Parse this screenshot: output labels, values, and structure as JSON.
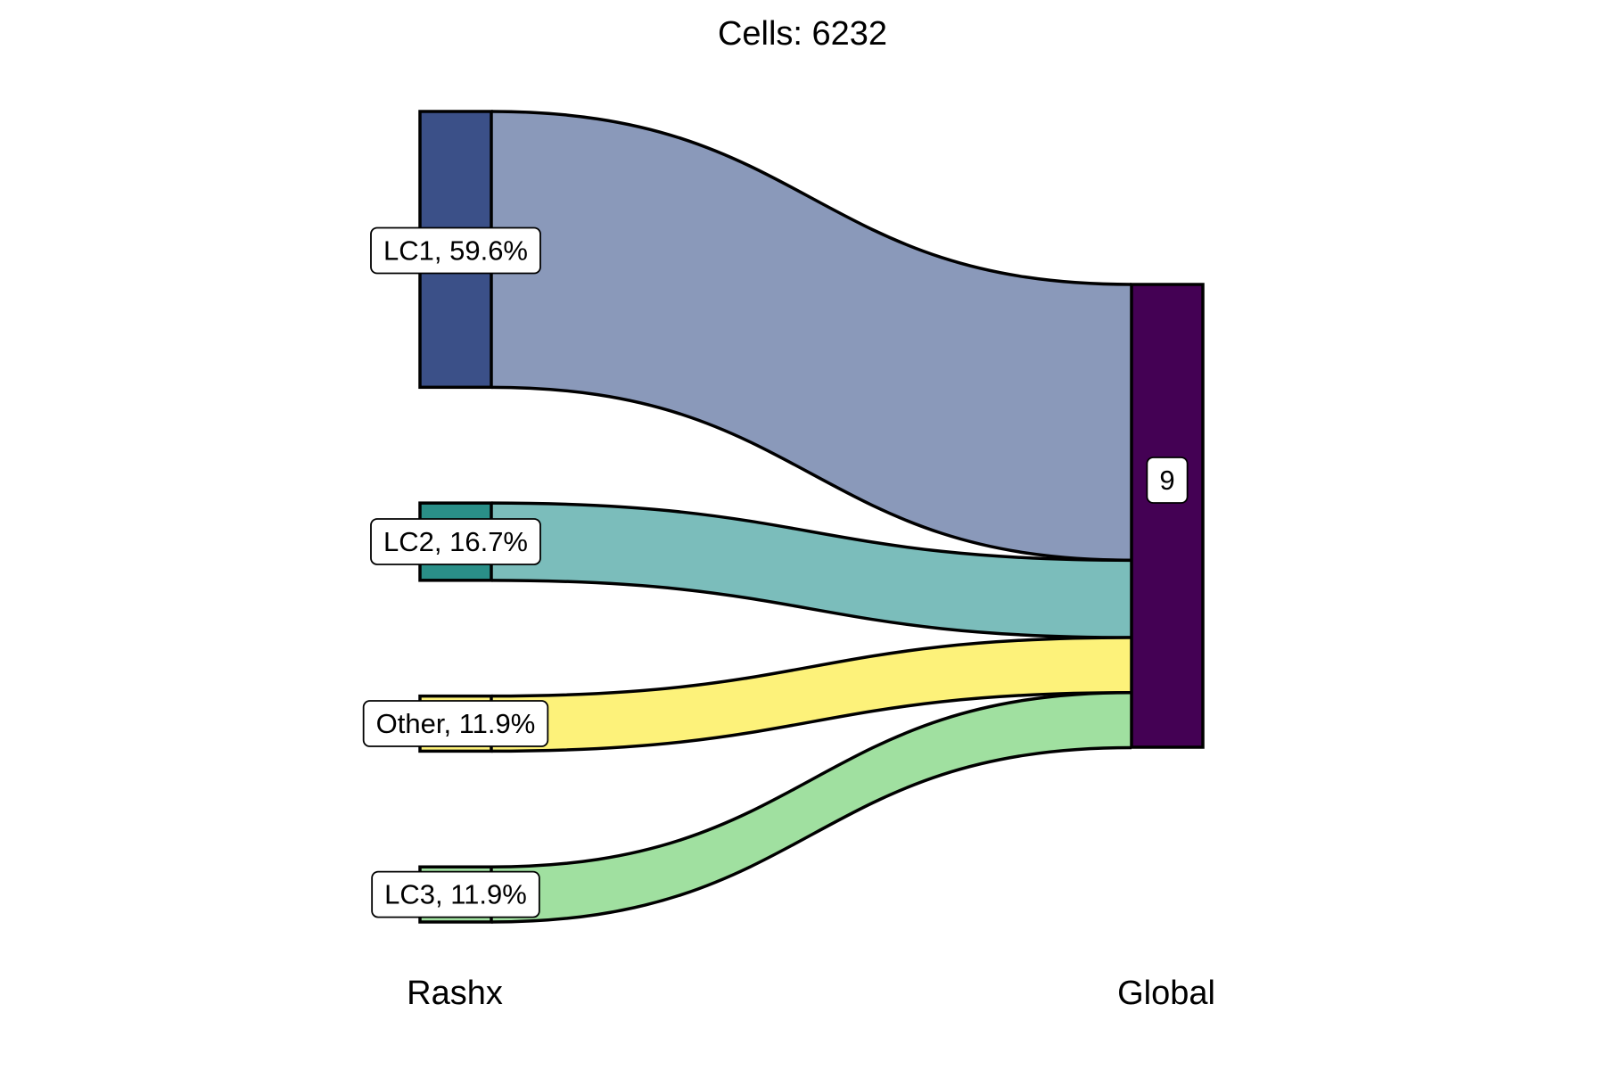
{
  "chart_data": {
    "type": "sankey",
    "title": "Cells:  6232",
    "axes": [
      "Rashx",
      "Global"
    ],
    "nodes": [
      {
        "axis": "Rashx",
        "name": "LC1",
        "label": "LC1, 59.6%",
        "value": 59.6,
        "color": "#3b5088"
      },
      {
        "axis": "Rashx",
        "name": "LC2",
        "label": "LC2, 16.7%",
        "value": 16.7,
        "color": "#2a8f88"
      },
      {
        "axis": "Rashx",
        "name": "Other",
        "label": "Other, 11.9%",
        "value": 11.9,
        "color": "#fdf27a"
      },
      {
        "axis": "Rashx",
        "name": "LC3",
        "label": "LC3, 11.9%",
        "value": 11.9,
        "color": "#a0e0a0"
      },
      {
        "axis": "Global",
        "name": "9",
        "label": "9",
        "value": 100,
        "color": "#440154"
      }
    ],
    "flows": [
      {
        "from": "LC1",
        "to": "9",
        "value": 59.6,
        "color": "#8a99ba"
      },
      {
        "from": "LC2",
        "to": "9",
        "value": 16.7,
        "color": "#7bbdbb"
      },
      {
        "from": "Other",
        "to": "9",
        "value": 11.9,
        "color": "#fdf27a"
      },
      {
        "from": "LC3",
        "to": "9",
        "value": 11.9,
        "color": "#a0e0a0"
      }
    ]
  }
}
